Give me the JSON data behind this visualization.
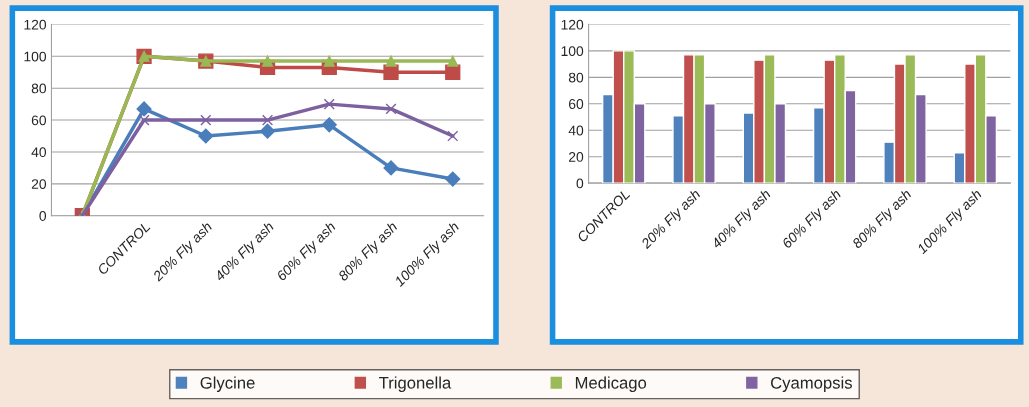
{
  "chart_data": [
    {
      "type": "line",
      "categories": [
        null,
        "CONTROL",
        "20% Fly ash",
        "40% Fly ash",
        "60% Fly ash",
        "80% Fly ash",
        "100% Fly ash"
      ],
      "ylim": [
        0,
        120
      ],
      "yticks": [
        0,
        20,
        40,
        60,
        80,
        100,
        120
      ],
      "grid": "y",
      "series": [
        {
          "color": "#4a7ebb",
          "marker": "diamond",
          "values": [
            0,
            67,
            50,
            53,
            57,
            30,
            23
          ]
        },
        {
          "color": "#be4b48",
          "marker": "square",
          "values": [
            0,
            100,
            97,
            93,
            93,
            90,
            90
          ]
        },
        {
          "color": "#98b954",
          "marker": "triangle",
          "values": [
            0,
            100,
            97,
            97,
            97,
            97,
            97
          ]
        },
        {
          "color": "#7d60a0",
          "marker": "cross",
          "values": [
            0,
            60,
            60,
            60,
            70,
            67,
            50
          ]
        }
      ]
    },
    {
      "type": "bar",
      "categories": [
        "CONTROL",
        "20% Fly ash",
        "40% Fly ash",
        "60% Fly ash",
        "80% Fly ash",
        "100% Fly ash"
      ],
      "ylim": [
        0,
        120
      ],
      "yticks": [
        0,
        20,
        40,
        60,
        80,
        100,
        120
      ],
      "grid": "y",
      "legend": "bottom",
      "series": [
        {
          "name": "Glycine",
          "color": "#4f81bd",
          "values": [
            67,
            51,
            53,
            57,
            31,
            23
          ]
        },
        {
          "name": "Trigonella",
          "color": "#c0504d",
          "values": [
            100,
            97,
            93,
            93,
            90,
            90
          ]
        },
        {
          "name": "Medicago",
          "color": "#9bbb59",
          "values": [
            100,
            97,
            97,
            97,
            97,
            97
          ]
        },
        {
          "name": "Cyamopsis",
          "color": "#8064a2",
          "values": [
            60,
            60,
            60,
            70,
            67,
            51
          ]
        }
      ]
    }
  ]
}
